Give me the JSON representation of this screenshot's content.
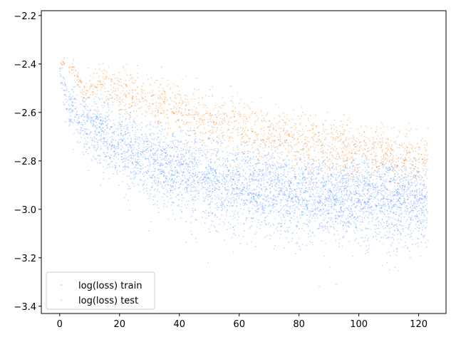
{
  "chart_data": {
    "type": "scatter",
    "title": "",
    "xlabel": "",
    "ylabel": "",
    "xlim": [
      -6.15,
      129.15
    ],
    "ylim": [
      -3.43,
      -2.18
    ],
    "xticks": [
      0,
      20,
      40,
      60,
      80,
      100,
      120
    ],
    "yticks": [
      -3.4,
      -3.2,
      -3.0,
      -2.8,
      -2.6,
      -2.4,
      -2.2
    ],
    "xtick_labels": [
      "0",
      "20",
      "40",
      "60",
      "80",
      "100",
      "120"
    ],
    "ytick_labels": [
      "−3.4",
      "−3.2",
      "−3.0",
      "−2.8",
      "−2.6",
      "−2.4",
      "−2.2"
    ],
    "grid": false,
    "legend_position": "lower-left",
    "series": [
      {
        "name": "log(loss) train",
        "color": "#1f77ff",
        "x_range": [
          0,
          123
        ],
        "center_curve": {
          "x": [
            0,
            2,
            5,
            10,
            20,
            30,
            40,
            50,
            60,
            70,
            80,
            90,
            100,
            110,
            123
          ],
          "y": [
            -2.43,
            -2.55,
            -2.6,
            -2.66,
            -2.74,
            -2.8,
            -2.84,
            -2.875,
            -2.9,
            -2.92,
            -2.935,
            -2.945,
            -2.955,
            -2.96,
            -2.965
          ]
        },
        "spread_sd": [
          0.03,
          0.05,
          0.06,
          0.07,
          0.08,
          0.085,
          0.09,
          0.09,
          0.09,
          0.09,
          0.09,
          0.09,
          0.09,
          0.09,
          0.09
        ]
      },
      {
        "name": "log(loss) test",
        "color": "#ff7f0e",
        "x_range": [
          0,
          123
        ],
        "center_curve": {
          "x": [
            0,
            2,
            5,
            8,
            15,
            20,
            30,
            40,
            50,
            60,
            70,
            80,
            90,
            100,
            110,
            123
          ],
          "y": [
            -2.4,
            -2.39,
            -2.43,
            -2.52,
            -2.48,
            -2.5,
            -2.55,
            -2.59,
            -2.63,
            -2.66,
            -2.69,
            -2.72,
            -2.74,
            -2.76,
            -2.78,
            -2.8
          ]
        },
        "spread_sd": [
          0.01,
          0.015,
          0.02,
          0.02,
          0.04,
          0.045,
          0.05,
          0.055,
          0.055,
          0.06,
          0.06,
          0.06,
          0.06,
          0.06,
          0.06,
          0.06
        ]
      }
    ]
  }
}
